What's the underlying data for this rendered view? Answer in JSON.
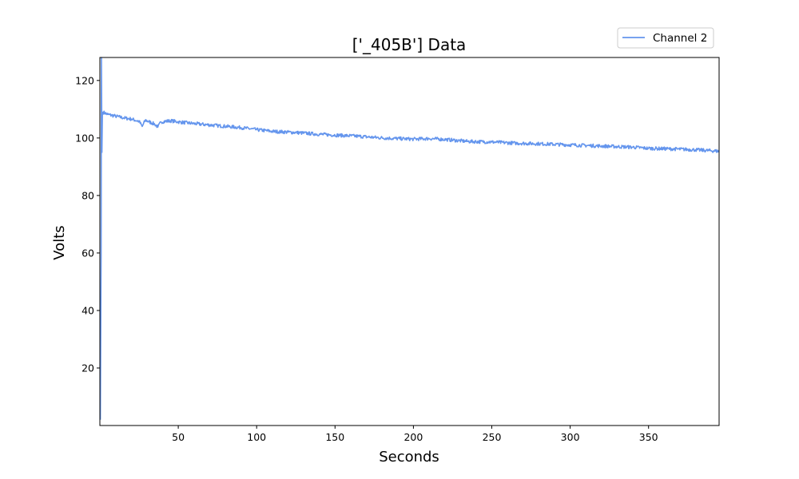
{
  "chart_data": {
    "type": "line",
    "title": "['_405B'] Data",
    "xlabel": "Seconds",
    "ylabel": "Volts",
    "xlim": [
      0,
      395
    ],
    "ylim": [
      0,
      128
    ],
    "xticks": [
      50,
      100,
      150,
      200,
      250,
      300,
      350
    ],
    "yticks": [
      20,
      40,
      60,
      80,
      100,
      120
    ],
    "grid": false,
    "legend_position": "top-right",
    "series": [
      {
        "name": "Channel 2",
        "color": "#6495ED",
        "x": [
          0.3,
          0.8,
          1.0,
          1.3,
          1.6,
          2.0,
          5,
          10,
          15,
          20,
          25,
          27,
          29,
          35,
          37,
          39,
          45,
          50,
          60,
          75,
          90,
          100,
          110,
          125,
          140,
          150,
          165,
          175,
          185,
          200,
          210,
          220,
          235,
          250,
          265,
          280,
          300,
          320,
          340,
          350,
          365,
          380,
          395
        ],
        "y": [
          2,
          60,
          128,
          95,
          108.5,
          109,
          108.2,
          107.6,
          107.0,
          106.6,
          105.8,
          104.0,
          106.2,
          104.8,
          103.8,
          105.6,
          106.0,
          105.6,
          105.0,
          104.3,
          103.6,
          102.9,
          102.3,
          101.9,
          101.3,
          101.0,
          100.6,
          100.2,
          99.9,
          99.6,
          99.8,
          99.5,
          98.8,
          98.6,
          98.2,
          98.0,
          97.6,
          97.2,
          96.8,
          96.4,
          96.2,
          95.9,
          95.4
        ]
      }
    ]
  }
}
